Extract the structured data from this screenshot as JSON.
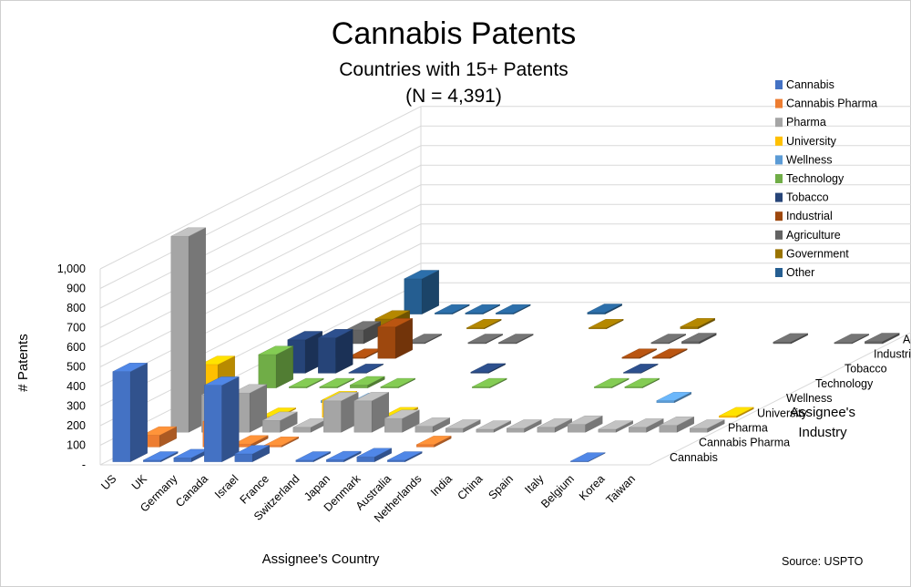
{
  "chart_data": {
    "type": "bar",
    "variant": "3d-column",
    "title": "Cannabis Patents",
    "subtitle": "Countries with 15+ Patents",
    "subtitle2": "(N = 4,391)",
    "xlabel": "Assignee's Country",
    "ylabel": "# Patents",
    "zlabel": "Assignee's Industry",
    "source": "Source: USPTO",
    "ylim": [
      0,
      1000
    ],
    "yticks": [
      "-",
      "100",
      "200",
      "300",
      "400",
      "500",
      "600",
      "700",
      "800",
      "900",
      "1,000"
    ],
    "categories": [
      "US",
      "UK",
      "Germany",
      "Canada",
      "Israel",
      "France",
      "Switzerland",
      "Japan",
      "Denmark",
      "Australia",
      "Netherlands",
      "India",
      "China",
      "Spain",
      "Italy",
      "Belgium",
      "Korea",
      "Taiwan"
    ],
    "series": [
      {
        "name": "Cannabis",
        "color": "#4472C4",
        "values": [
          460,
          8,
          20,
          390,
          40,
          0,
          8,
          10,
          25,
          8,
          0,
          0,
          0,
          0,
          0,
          3,
          0,
          0
        ]
      },
      {
        "name": "Cannabis Pharma",
        "color": "#ED7D31",
        "values": [
          60,
          0,
          130,
          15,
          8,
          0,
          0,
          0,
          0,
          12,
          0,
          0,
          0,
          0,
          0,
          0,
          0,
          0
        ]
      },
      {
        "name": "Pharma",
        "color": "#A5A5A5",
        "values": [
          1000,
          190,
          200,
          60,
          25,
          160,
          160,
          70,
          30,
          20,
          15,
          20,
          25,
          40,
          15,
          25,
          35,
          20
        ]
      },
      {
        "name": "University",
        "color": "#FFC000",
        "values": [
          270,
          5,
          5,
          0,
          90,
          0,
          8,
          0,
          0,
          0,
          0,
          0,
          0,
          0,
          0,
          0,
          0,
          8
        ]
      },
      {
        "name": "Wellness",
        "color": "#5B9BD5",
        "values": [
          30,
          0,
          0,
          10,
          5,
          0,
          0,
          0,
          0,
          0,
          0,
          0,
          0,
          0,
          10,
          0,
          0,
          0
        ]
      },
      {
        "name": "Technology",
        "color": "#70AD47",
        "values": [
          170,
          5,
          5,
          15,
          5,
          0,
          0,
          5,
          0,
          0,
          0,
          5,
          5,
          0,
          0,
          0,
          0,
          0
        ]
      },
      {
        "name": "Tobacco",
        "color": "#264478",
        "values": [
          170,
          180,
          3,
          0,
          0,
          0,
          5,
          0,
          0,
          0,
          0,
          3,
          0,
          0,
          0,
          0,
          0,
          0
        ]
      },
      {
        "name": "Industrial",
        "color": "#9E480E",
        "values": [
          40,
          5,
          160,
          0,
          0,
          0,
          0,
          0,
          0,
          0,
          5,
          5,
          0,
          0,
          0,
          0,
          0,
          0
        ]
      },
      {
        "name": "Agriculture",
        "color": "#636363",
        "values": [
          70,
          0,
          5,
          0,
          5,
          5,
          0,
          0,
          0,
          0,
          5,
          10,
          0,
          0,
          8,
          0,
          5,
          10
        ]
      },
      {
        "name": "Government",
        "color": "#997300",
        "values": [
          50,
          0,
          0,
          5,
          0,
          0,
          0,
          5,
          0,
          0,
          10,
          0,
          0,
          0,
          0,
          0,
          0,
          0
        ]
      },
      {
        "name": "Other",
        "color": "#255E91",
        "values": [
          180,
          5,
          5,
          5,
          0,
          0,
          8,
          0,
          0,
          0,
          0,
          0,
          0,
          0,
          0,
          0,
          0,
          0
        ]
      }
    ]
  }
}
